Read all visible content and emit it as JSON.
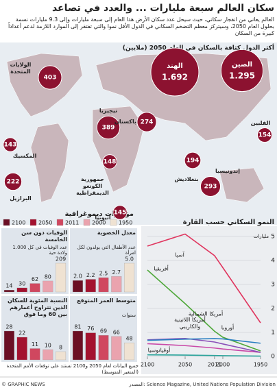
{
  "header": {
    "title": "سكان العالم سبعة مليارات ... والعدد في تصاعد",
    "intro": "العالم يعاني من انفجار سكاني، حيث سيحل عدد سكان الأرض هذا العام إلى سبعة مليارات وإلى 9.3 مليارات نسمة بحلول العام 2050، وسيتركز معظم التضخم السكاني في الدول الأقل نموا والتي تفتقر إلى الموارد اللازمة لدعم أعداداً كبيرة من السكان"
  },
  "map": {
    "title": "أكثر الدول كثافة بالسكان في العام 2050 (ملايين)",
    "countries": [
      "الصين",
      "الهند",
      "الولايات المتحدة",
      "نيجيريا",
      "باكستان",
      "الفلبين",
      "المكسيك",
      "جمهورية الكونغو الديمقراطية",
      "بنغلاديش",
      "البرازيل",
      "إندونيسيا",
      "أثيوبيا"
    ],
    "values": [
      1295,
      1692,
      403,
      389,
      274,
      154,
      143,
      148,
      194,
      222,
      293,
      145
    ],
    "value_labels": [
      "1.295",
      "1.692",
      "403",
      "389",
      "274",
      "154",
      "143",
      "148",
      "194",
      "222",
      "293",
      "145"
    ],
    "color": "#8c1230"
  },
  "indicators": {
    "title": "مؤشرات ديموغرافية",
    "years": [
      2100,
      2050,
      2011,
      2000,
      1950
    ],
    "colors": [
      "#6b0f24",
      "#a3122f",
      "#d0475f",
      "#eaa3ae",
      "#efe2d2"
    ]
  },
  "chart_data": [
    {
      "type": "bar",
      "title": "الوفيات دون سن الخامسة",
      "subtitle": "عدد الوفيات في كل 1.000 ولادة حية",
      "values": [
        14,
        30,
        62,
        80,
        209
      ]
    },
    {
      "type": "bar",
      "title": "معدل الخصوبة",
      "subtitle": "عدد الأطفال التي يولدون لكل امرأة",
      "values": [
        2.0,
        2.2,
        2.5,
        2.7,
        5.0
      ],
      "value_labels": [
        "2.0",
        "2.2",
        "2.5",
        "2.7",
        "5.0"
      ]
    },
    {
      "type": "bar",
      "title": "النسبة المئوية للسكان الذين تتراوح أعمارهم بين 60 وما فوق",
      "values": [
        28,
        22,
        11,
        10,
        8
      ]
    },
    {
      "type": "bar",
      "title": "متوسط العمر المتوقع",
      "subtitle": "سنوات",
      "values": [
        81,
        76,
        69,
        66,
        48
      ]
    },
    {
      "type": "line",
      "title": "النمو السكاني حسب القارة",
      "y_unit": "مليارات",
      "x": [
        1950,
        2000,
        2011,
        2050,
        2100
      ],
      "xlim": [
        2100,
        1950
      ],
      "xticks": [
        2100,
        2050,
        2011,
        2000,
        1950
      ],
      "ylim": [
        0,
        5
      ],
      "yticks": [
        0,
        1,
        2,
        3,
        4,
        5
      ],
      "series": [
        {
          "name": "آسيا",
          "color": "#e0365f",
          "values": [
            1.4,
            3.7,
            4.2,
            5.1,
            4.6
          ]
        },
        {
          "name": "أفريقيا",
          "color": "#4fa83a",
          "values": [
            0.23,
            0.8,
            1.05,
            2.2,
            3.6
          ]
        },
        {
          "name": "أمريكا الشمالية",
          "color": "#c94aa8",
          "values": [
            0.17,
            0.31,
            0.35,
            0.45,
            0.53
          ]
        },
        {
          "name": "أمريكا اللاتينية والكاريبي",
          "color": "#8a4fb8",
          "values": [
            0.17,
            0.52,
            0.6,
            0.75,
            0.69
          ]
        },
        {
          "name": "أوروبا",
          "color": "#2a7fc1",
          "values": [
            0.55,
            0.73,
            0.74,
            0.72,
            0.67
          ]
        },
        {
          "name": "أوقيانوسيا",
          "color": "#2aa39a",
          "values": [
            0.013,
            0.031,
            0.037,
            0.055,
            0.066
          ]
        }
      ]
    }
  ],
  "footer": {
    "note": "جميع البيانات لعام 2050 و2100 تستند على توقعات الأمم المتحدة (المتغير المتوسط)",
    "source": "المصدر: Science Magazine, United Nations Population Division",
    "credit": "© GRAPHIC NEWS"
  }
}
